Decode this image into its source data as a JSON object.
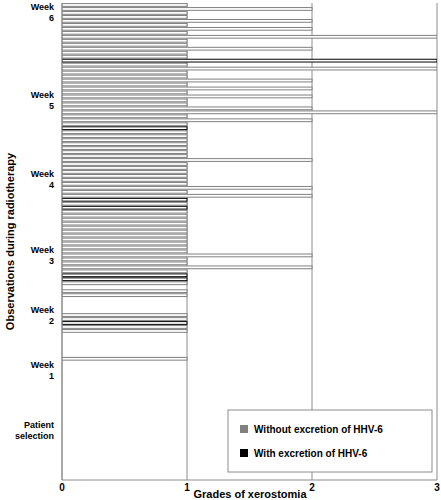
{
  "chart_data": {
    "type": "bar",
    "orientation": "horizontal",
    "x_label": "Grades of xerostomia",
    "y_label": "Observations during radiotherapy",
    "categories": [
      null,
      null,
      null,
      null,
      null,
      null,
      null,
      null,
      null,
      null,
      null,
      null,
      "Patient selection",
      null,
      null,
      null,
      null,
      null,
      null,
      null,
      null,
      null,
      null,
      null,
      null,
      null,
      null,
      "Week 1",
      null,
      null,
      null,
      null,
      null,
      null,
      null,
      null,
      null,
      null,
      null,
      null,
      null,
      "Week 2",
      null,
      null,
      null,
      null,
      null,
      null,
      null,
      null,
      null,
      null,
      null,
      null,
      null,
      null,
      "Week 3",
      null,
      null,
      null,
      null,
      null,
      null,
      null,
      null,
      null,
      null,
      null,
      null,
      null,
      null,
      null,
      null,
      null,
      null,
      "Week 4",
      null,
      null,
      null,
      null,
      null,
      null,
      null,
      null,
      null,
      null,
      null,
      null,
      null,
      null,
      null,
      null,
      null,
      null,
      null,
      "Week 5",
      null,
      null,
      null,
      null,
      null,
      null,
      null,
      null,
      null,
      null,
      null,
      null,
      null,
      null,
      null,
      null,
      null,
      null,
      null,
      null,
      null,
      "Week 6",
      null,
      null
    ],
    "series": [
      {
        "name": "Without excretion of HHV-6",
        "color": "#808080",
        "values": [
          null,
          null,
          null,
          null,
          null,
          null,
          null,
          null,
          null,
          null,
          null,
          null,
          null,
          null,
          null,
          null,
          null,
          null,
          null,
          null,
          null,
          null,
          null,
          null,
          null,
          null,
          null,
          null,
          null,
          null,
          1,
          null,
          null,
          null,
          null,
          null,
          null,
          1,
          1,
          null,
          1,
          1,
          null,
          null,
          null,
          null,
          1,
          1,
          null,
          1,
          null,
          null,
          1,
          2,
          1,
          1,
          2,
          1,
          1,
          1,
          1,
          1,
          1,
          1,
          1,
          1,
          1,
          1,
          null,
          1,
          null,
          2,
          1,
          2,
          1,
          1,
          1,
          1,
          1,
          1,
          2,
          1,
          1,
          1,
          1,
          1,
          1,
          1,
          null,
          1,
          2,
          1,
          3,
          2,
          1,
          1,
          2,
          1,
          2,
          1,
          2,
          1,
          1,
          3,
          1,
          null,
          1,
          1,
          2,
          1,
          1,
          3,
          1,
          2,
          1,
          2,
          1,
          1,
          2,
          1
        ]
      },
      {
        "name": "With excretion of HHV-6",
        "color": "#000000",
        "values": [
          null,
          null,
          null,
          null,
          null,
          null,
          null,
          null,
          null,
          null,
          null,
          null,
          null,
          null,
          null,
          null,
          null,
          null,
          null,
          null,
          null,
          null,
          null,
          null,
          null,
          null,
          null,
          null,
          null,
          null,
          null,
          null,
          null,
          null,
          null,
          null,
          null,
          null,
          null,
          1,
          null,
          null,
          null,
          null,
          null,
          null,
          null,
          null,
          null,
          null,
          1,
          1,
          null,
          null,
          null,
          null,
          null,
          null,
          null,
          null,
          null,
          null,
          null,
          null,
          null,
          null,
          null,
          null,
          1,
          null,
          1,
          null,
          null,
          null,
          null,
          null,
          null,
          null,
          null,
          null,
          null,
          null,
          null,
          null,
          null,
          null,
          null,
          null,
          1,
          null,
          null,
          null,
          null,
          null,
          null,
          null,
          null,
          null,
          null,
          null,
          null,
          null,
          null,
          null,
          null,
          3,
          null,
          null,
          null,
          null,
          null,
          null,
          null,
          null,
          null,
          null,
          null,
          null,
          null,
          null
        ]
      }
    ],
    "xlim": [
      0,
      3
    ],
    "xticks": [
      0,
      1,
      2,
      3
    ],
    "grid": true,
    "legend": "lower right"
  }
}
